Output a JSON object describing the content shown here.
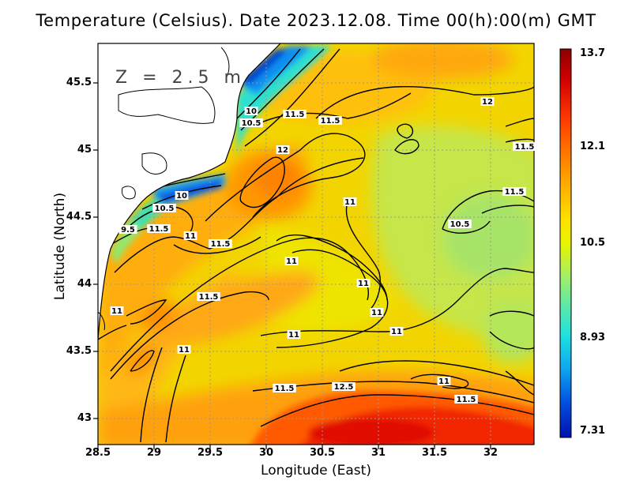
{
  "title": "Temperature (Celsius). Date 2023.12.08. Time 00(h):00(m) GMT",
  "xlabel": "Longitude (East)",
  "ylabel": "Latitude (North)",
  "depth_label": "Z = 2.5 m",
  "x_ticks": [
    "28.5",
    "29",
    "29.5",
    "30",
    "30.5",
    "31",
    "31.5",
    "32"
  ],
  "y_ticks": [
    "45.5",
    "45",
    "44.5",
    "44",
    "43.5",
    "43"
  ],
  "colorbar": {
    "labels": [
      "13.7",
      "12.1",
      "10.5",
      "8.93",
      "7.31"
    ],
    "min": 7.31,
    "max": 13.7,
    "colors": [
      "#8b0000",
      "#d20000",
      "#ff3a00",
      "#ff7f00",
      "#ffb300",
      "#ffe000",
      "#e8f500",
      "#a8f060",
      "#5ee8a8",
      "#1ee0e0",
      "#10a8f0",
      "#0050e0",
      "#0010b0"
    ]
  },
  "contour_labels": [
    "9.5",
    "10",
    "10",
    "10.5",
    "10.5",
    "10.5",
    "11",
    "11",
    "11",
    "11",
    "11",
    "11",
    "11",
    "11",
    "11",
    "11",
    "11.5",
    "11.5",
    "11.5",
    "11.5",
    "11.5",
    "11.5",
    "11.5",
    "11.5",
    "11.5",
    "12",
    "12",
    "12.5"
  ],
  "chart_data": {
    "type": "heatmap",
    "title": "Temperature (Celsius). Date 2023.12.08. Time 00(h):00(m) GMT",
    "xlabel": "Longitude (East)",
    "ylabel": "Latitude (North)",
    "xlim": [
      28.5,
      32.4
    ],
    "ylim": [
      42.8,
      45.8
    ],
    "x_ticks": [
      28.5,
      29,
      29.5,
      30,
      30.5,
      31,
      31.5,
      32
    ],
    "y_ticks": [
      43,
      43.5,
      44,
      44.5,
      45,
      45.5
    ],
    "color_range": [
      7.31,
      13.7
    ],
    "contour_levels": [
      9.5,
      10,
      10.5,
      11,
      11.5,
      12,
      12.5
    ],
    "grid": true,
    "legend": "colorbar right"
  }
}
